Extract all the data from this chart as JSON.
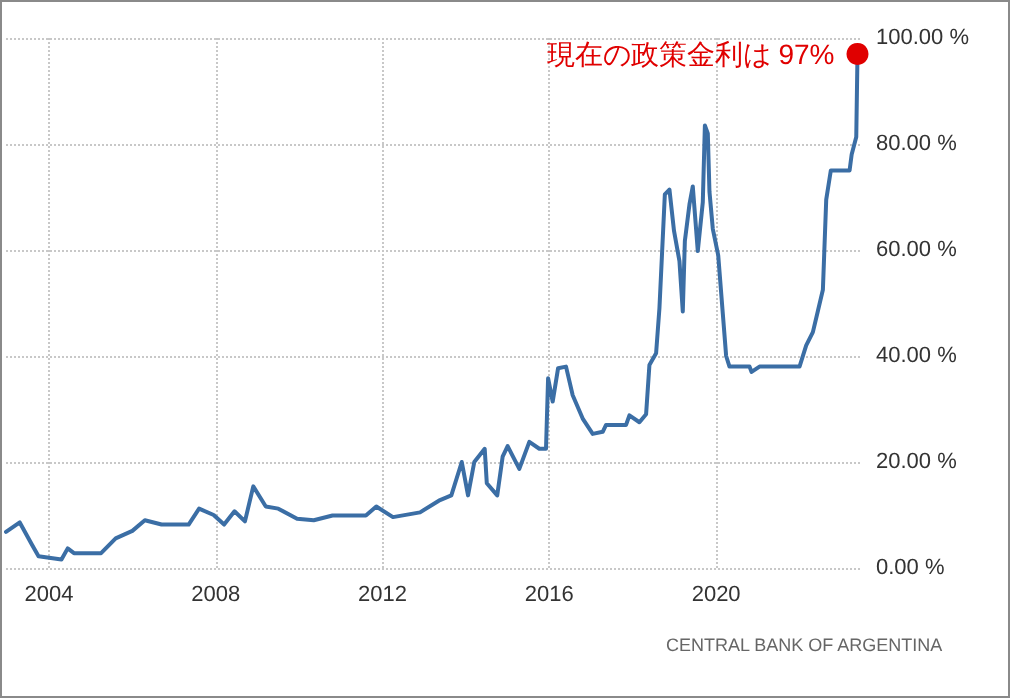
{
  "chart_data": {
    "type": "line",
    "x": [
      2002.97,
      2003.3,
      2003.6,
      2003.75,
      2004.3,
      2004.45,
      2004.6,
      2005.25,
      2005.6,
      2006.0,
      2006.3,
      2006.7,
      2007.35,
      2007.6,
      2007.95,
      2008.2,
      2008.45,
      2008.7,
      2008.9,
      2009.2,
      2009.5,
      2009.95,
      2010.35,
      2010.8,
      2011.6,
      2011.85,
      2012.25,
      2012.9,
      2013.35,
      2013.65,
      2013.9,
      2014.05,
      2014.2,
      2014.45,
      2014.5,
      2014.75,
      2014.88,
      2015.0,
      2015.28,
      2015.52,
      2015.76,
      2015.92,
      2015.97,
      2016.08,
      2016.21,
      2016.4,
      2016.56,
      2016.8,
      2017.04,
      2017.28,
      2017.36,
      2017.84,
      2017.92,
      2018.16,
      2018.32,
      2018.4,
      2018.56,
      2018.64,
      2018.77,
      2018.88,
      2018.99,
      2019.12,
      2019.2,
      2019.25,
      2019.36,
      2019.44,
      2019.56,
      2019.68,
      2019.73,
      2019.8,
      2019.84,
      2019.92,
      2020.05,
      2020.16,
      2020.24,
      2020.32,
      2020.8,
      2020.85,
      2021.04,
      2022.0,
      2022.16,
      2022.32,
      2022.44,
      2022.56,
      2022.64,
      2022.75,
      2023.2,
      2023.25,
      2023.36,
      2023.39
    ],
    "series": [
      {
        "color": "#3b6ea5",
        "values": [
          6.8,
          8.6,
          4.3,
          2.2,
          1.6,
          3.7,
          2.8,
          2.8,
          5.6,
          7,
          9,
          8.2,
          8.2,
          11.2,
          10,
          8.2,
          10.7,
          8.8,
          15.4,
          11.6,
          11.2,
          9.3,
          9,
          9.9,
          9.9,
          11.6,
          9.6,
          10.5,
          12.7,
          13.7,
          20,
          13.7,
          20,
          22.5,
          16,
          13.7,
          21,
          23,
          18.7,
          23.8,
          22.5,
          22.5,
          35.8,
          31.4,
          37.7,
          38,
          32.6,
          28.2,
          25.3,
          25.7,
          27,
          27,
          28.8,
          27.5,
          29,
          38.3,
          40.5,
          49,
          70.5,
          71.4,
          63.6,
          57.9,
          48.4,
          61.7,
          68.6,
          72,
          59.8,
          69,
          83.5,
          82,
          71,
          64,
          59,
          48,
          40,
          38,
          38,
          37,
          38,
          38,
          42,
          44.5,
          48.5,
          52.5,
          69.5,
          75,
          75,
          78,
          81.3,
          97
        ]
      }
    ],
    "xlim": [
      2002.97,
      2023.45
    ],
    "xticks": [
      2004,
      2008,
      2012,
      2016,
      2020
    ],
    "ylim": [
      0,
      100
    ],
    "yticks": [
      {
        "value": 0,
        "label": "0.00 %"
      },
      {
        "value": 20,
        "label": "20.00 %"
      },
      {
        "value": 40,
        "label": "40.00 %"
      },
      {
        "value": 60,
        "label": "60.00 %"
      },
      {
        "value": 80,
        "label": "80.00 %"
      },
      {
        "value": 100,
        "label": "100.00 %"
      }
    ],
    "grid": true,
    "marker": "none",
    "line_style": "solid",
    "annotations": [
      {
        "text": "現在の政策金利は 97%",
        "x": 2023.39,
        "y": 97
      },
      "CENTRAL BANK OF ARGENTINA"
    ]
  }
}
